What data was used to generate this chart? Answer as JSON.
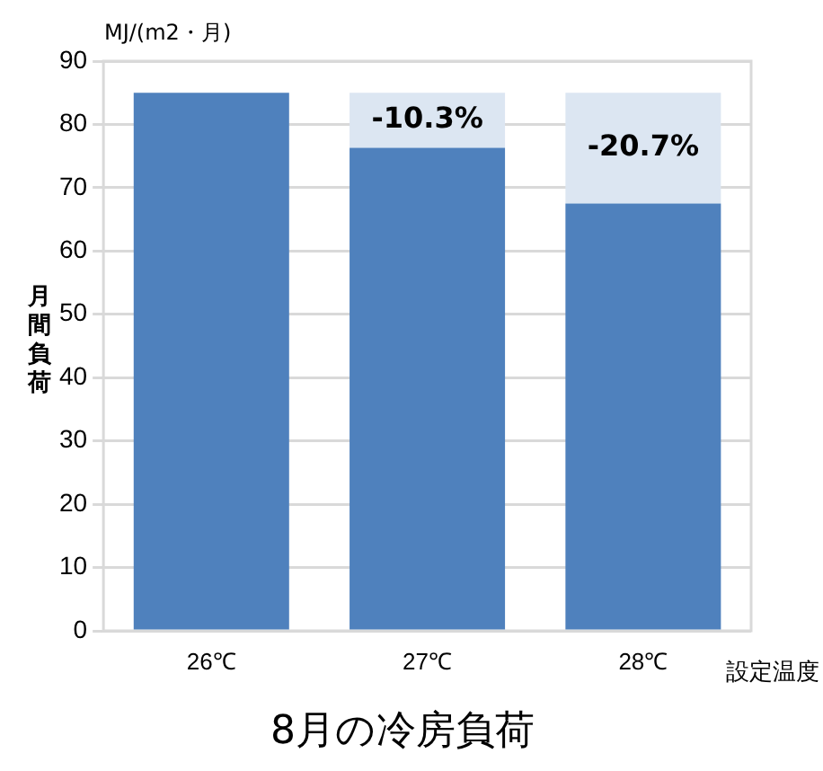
{
  "chart_data": {
    "type": "bar",
    "title": "8月の冷房負荷",
    "xlabel": "設定温度",
    "ylabel": "月間負荷",
    "annotations": [
      "MJ/(m2・月)",
      "-10.3%",
      "-20.7%"
    ],
    "categories": [
      "26℃",
      "27℃",
      "28℃"
    ],
    "stacked": true,
    "series": [
      {
        "color": "#4f81bd",
        "values": [
          85,
          76.3,
          67.5
        ]
      },
      {
        "color": "#dce6f2",
        "values": [
          0,
          8.7,
          17.5
        ]
      }
    ],
    "ylim": [
      0,
      90
    ],
    "yticks": [
      0,
      10,
      20,
      30,
      40,
      50,
      60,
      70,
      80,
      90
    ],
    "grid": "y",
    "legend": false
  }
}
